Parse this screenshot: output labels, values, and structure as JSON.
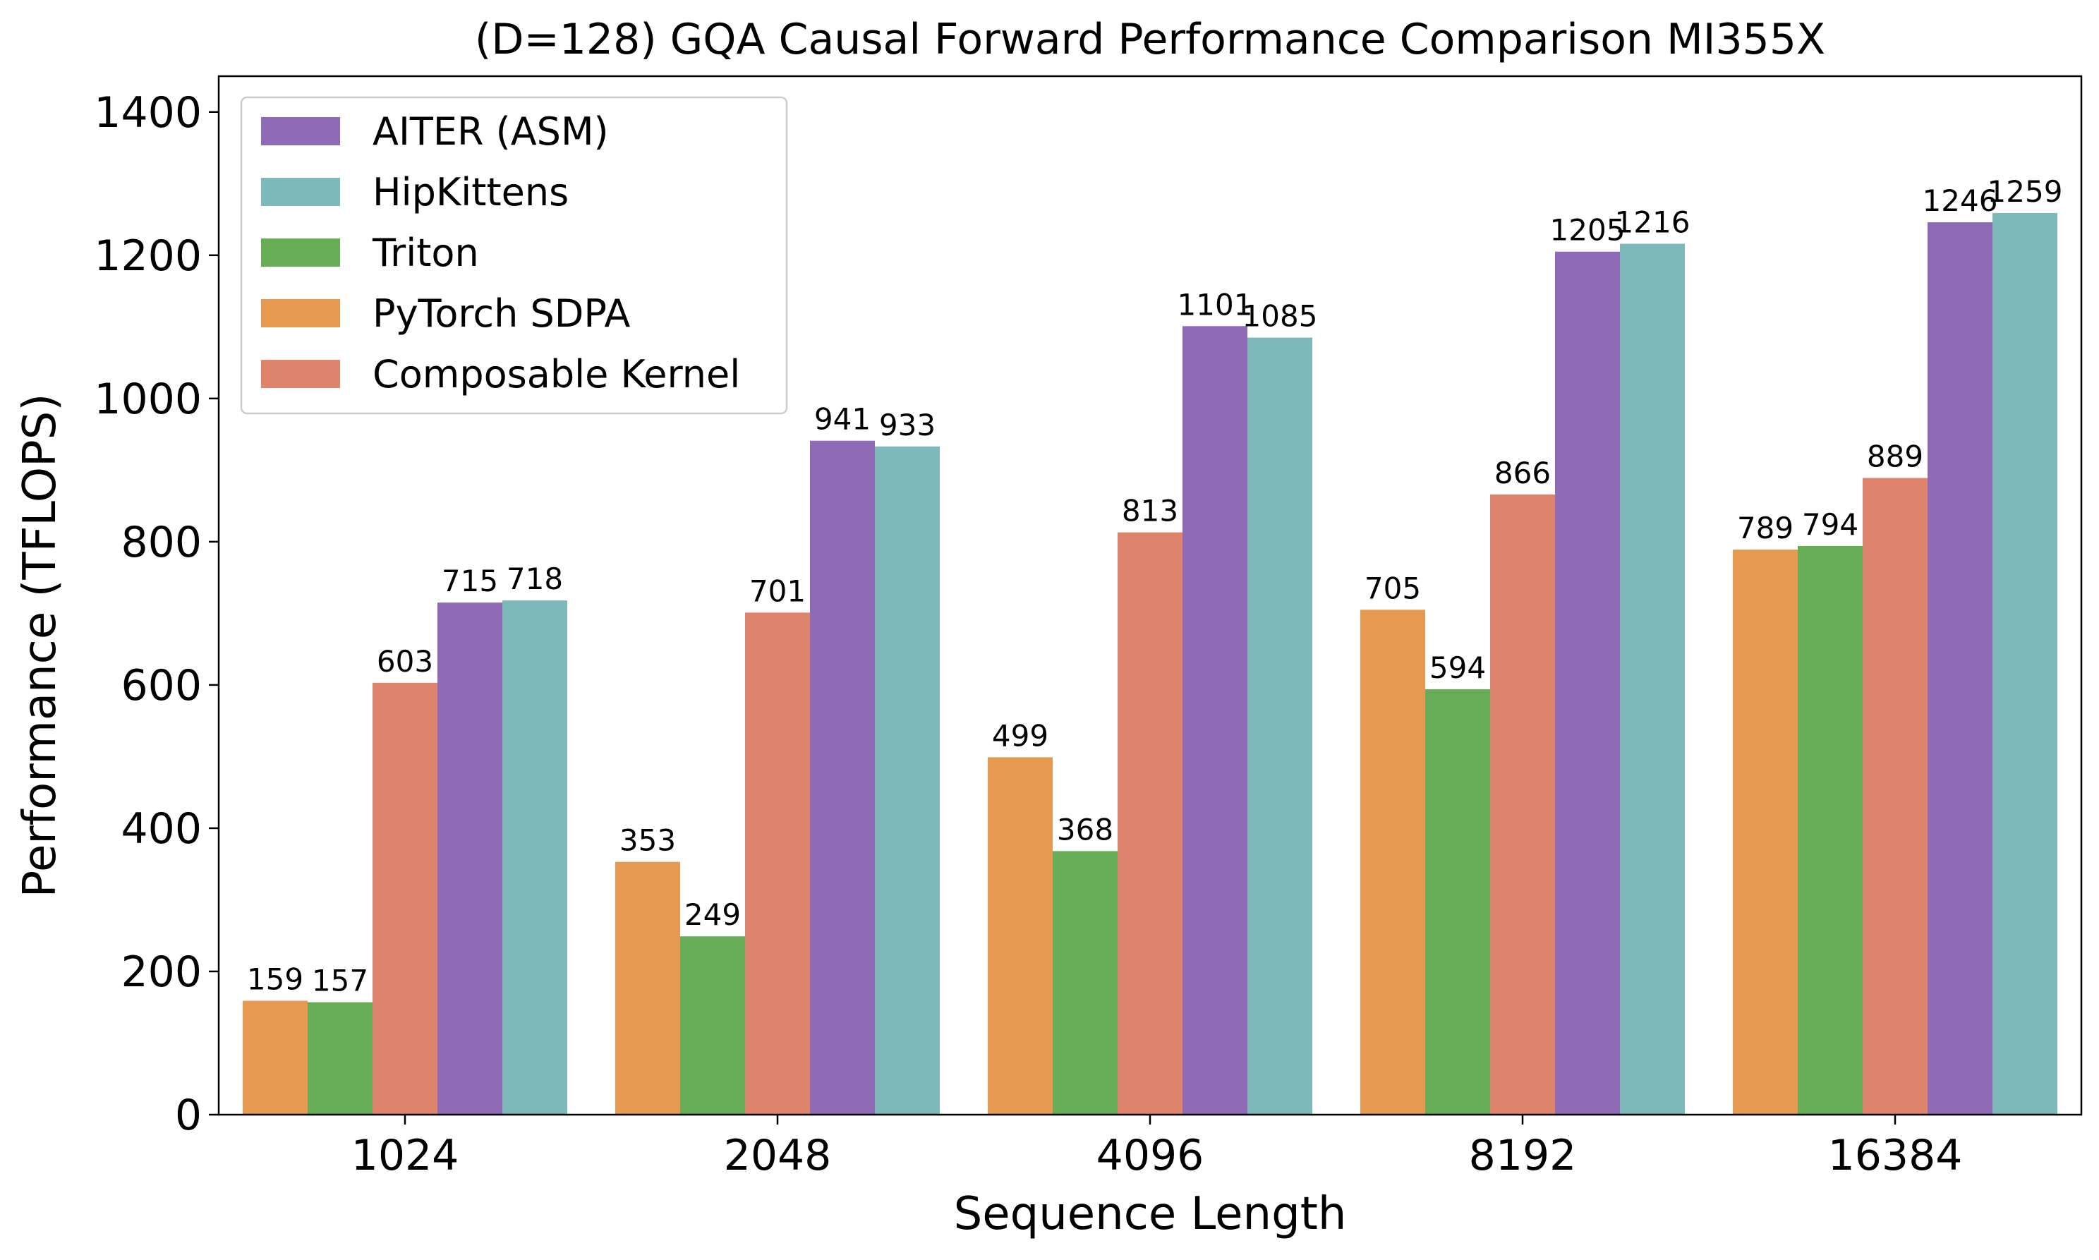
{
  "chart_data": {
    "type": "bar",
    "title": "(D=128) GQA Causal Forward Performance Comparison MI355X",
    "xlabel": "Sequence Length",
    "ylabel": "Performance (TFLOPS)",
    "categories": [
      "1024",
      "2048",
      "4096",
      "8192",
      "16384"
    ],
    "ylim": [
      0,
      1450
    ],
    "yticks": [
      0,
      200,
      400,
      600,
      800,
      1000,
      1200,
      1400
    ],
    "grid": false,
    "legend_position": "upper-left",
    "series": [
      {
        "name": "PyTorch SDPA",
        "color": "#E69951",
        "values": [
          159,
          353,
          499,
          705,
          789
        ]
      },
      {
        "name": "Triton",
        "color": "#67AC57",
        "values": [
          157,
          249,
          368,
          594,
          794
        ]
      },
      {
        "name": "Composable Kernel",
        "color": "#DE836C",
        "values": [
          603,
          701,
          813,
          866,
          889
        ]
      },
      {
        "name": "AITER (ASM)",
        "color": "#8E6AB7",
        "values": [
          715,
          941,
          1101,
          1205,
          1246
        ]
      },
      {
        "name": "HipKittens",
        "color": "#7DB8BA",
        "values": [
          718,
          933,
          1085,
          1216,
          1259
        ]
      }
    ],
    "legend_order": [
      "AITER (ASM)",
      "HipKittens",
      "Triton",
      "PyTorch SDPA",
      "Composable Kernel"
    ]
  }
}
